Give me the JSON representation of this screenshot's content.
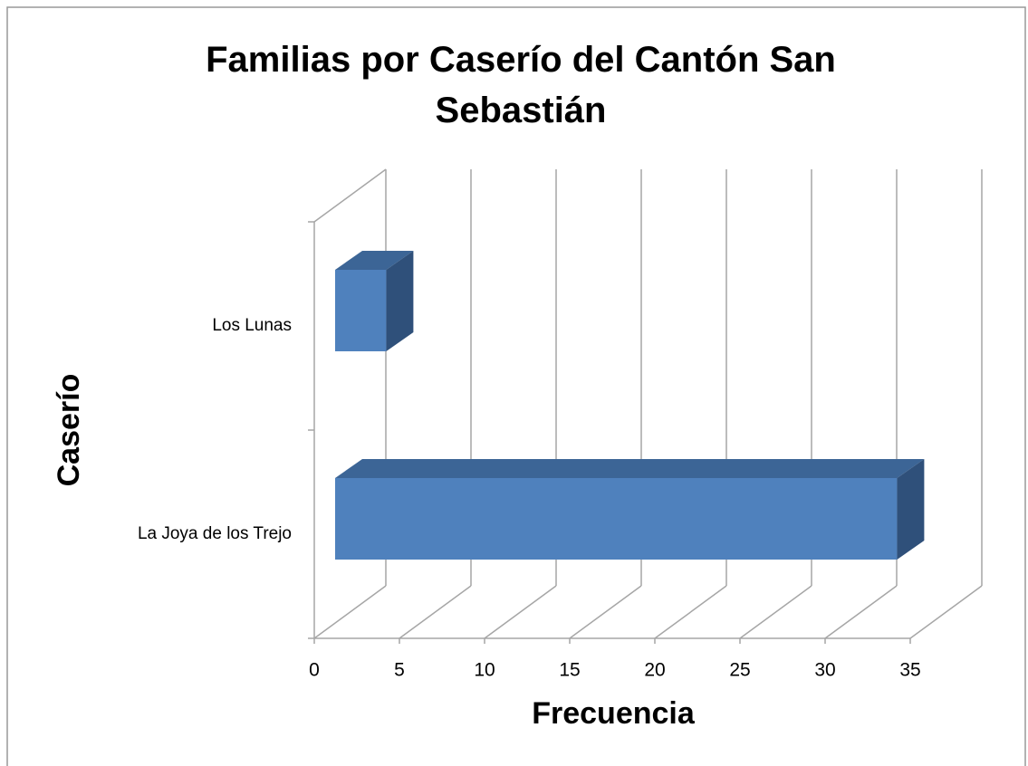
{
  "chart_data": {
    "type": "bar3d_horizontal",
    "title": "Familias por Caserío del Cantón San Sebastián",
    "x_label": "Frecuencia",
    "y_label": "Caserío",
    "categories": [
      "La Joya de los Trejo",
      "Los Lunas"
    ],
    "values": [
      33,
      3
    ],
    "color": "#4f81bd",
    "xlim": [
      0,
      35
    ],
    "xticks": [
      0,
      5,
      10,
      15,
      20,
      25,
      30,
      35
    ],
    "grid": true
  }
}
